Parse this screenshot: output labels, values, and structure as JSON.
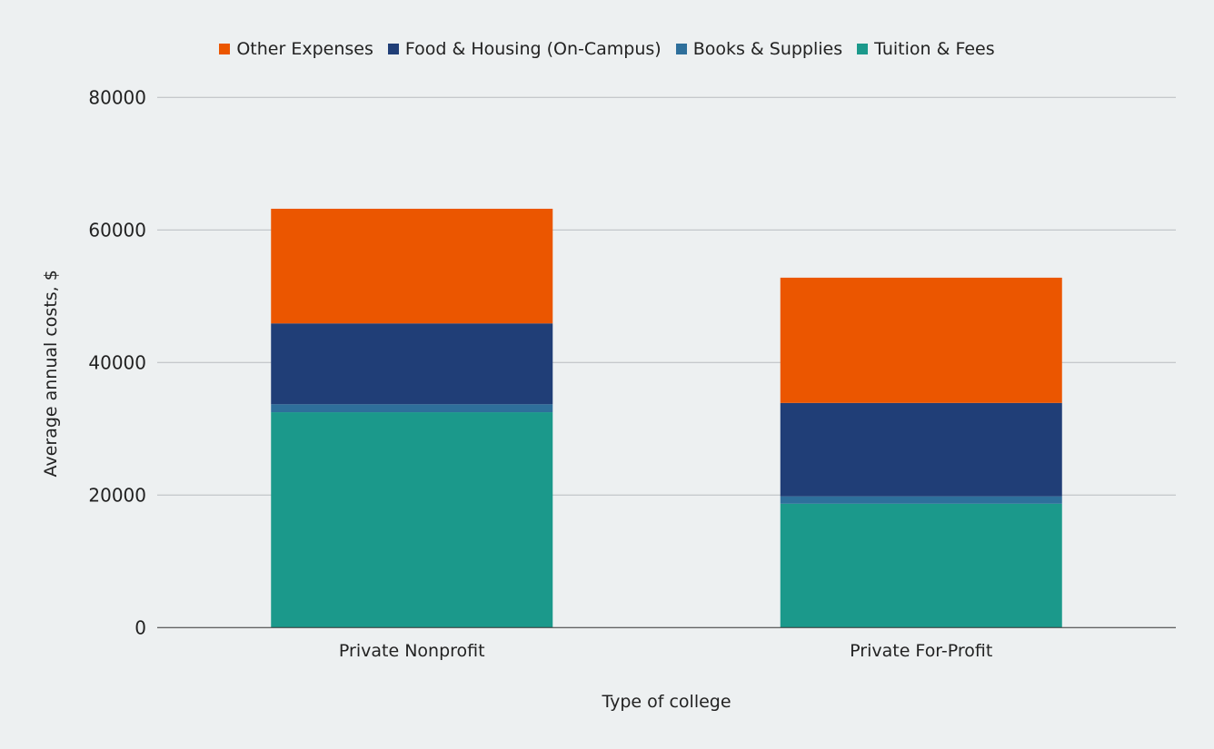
{
  "chart_data": {
    "type": "bar",
    "stacked": true,
    "xlabel": "Type of college",
    "ylabel": "Average annual costs, $",
    "ylim": [
      0,
      80000
    ],
    "yticks": [
      0,
      20000,
      40000,
      60000,
      80000
    ],
    "grid": true,
    "legend_position": "top",
    "categories": [
      "Private Nonprofit",
      "Private For-Profit"
    ],
    "series": [
      {
        "name": "Tuition & Fees",
        "color": "#1b998b",
        "values": [
          32500,
          18700
        ]
      },
      {
        "name": "Books & Supplies",
        "color": "#2e6f9b",
        "values": [
          1200,
          1100
        ]
      },
      {
        "name": "Food & Housing (On-Campus)",
        "color": "#203e77",
        "values": [
          12200,
          14100
        ]
      },
      {
        "name": "Other Expenses",
        "color": "#eb5600",
        "values": [
          17300,
          18900
        ]
      }
    ],
    "legend_order": [
      "Other Expenses",
      "Food & Housing (On-Campus)",
      "Books & Supplies",
      "Tuition & Fees"
    ]
  }
}
